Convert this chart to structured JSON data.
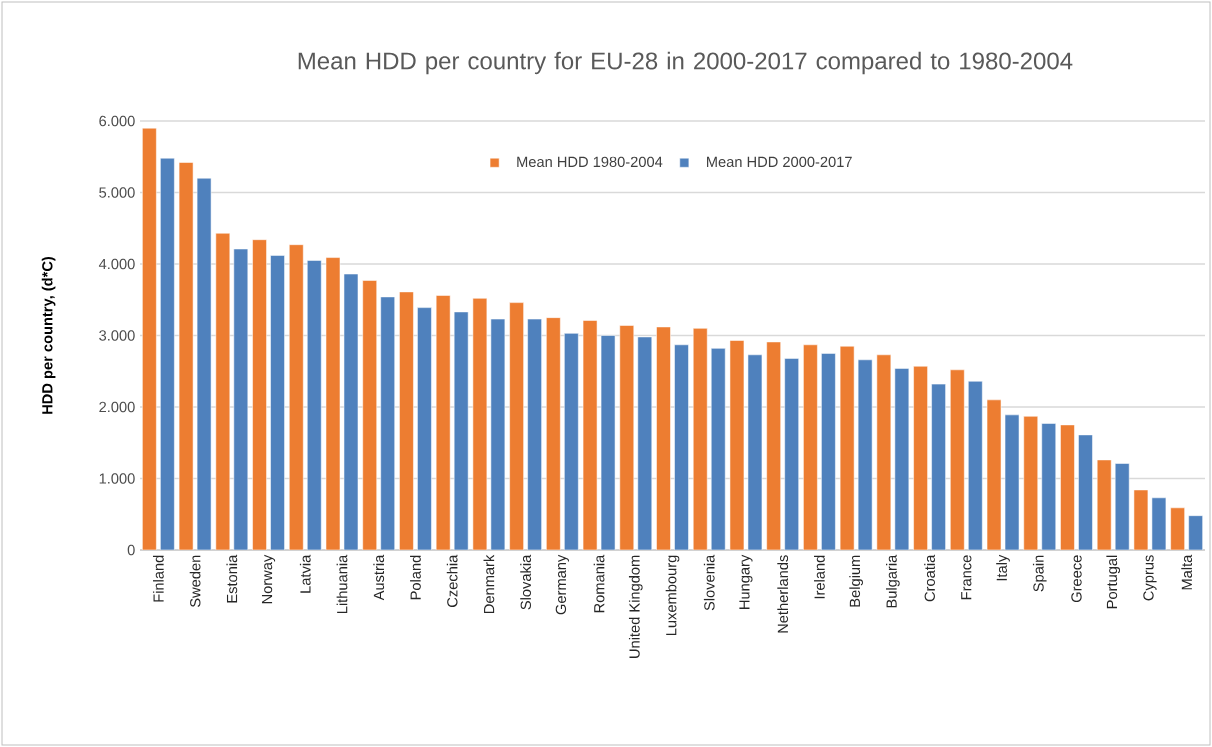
{
  "chart_data": {
    "type": "bar",
    "title": "Mean HDD per country for EU-28 in 2000-2017 compared to 1980-2004",
    "ylabel": "HDD per country, (d*C)",
    "categories": [
      "Finland",
      "Sweden",
      "Estonia",
      "Norway",
      "Latvia",
      "Lithuania",
      "Austria",
      "Poland",
      "Czechia",
      "Denmark",
      "Slovakia",
      "Germany",
      "Romania",
      "United Kingdom",
      "Luxembourg",
      "Slovenia",
      "Hungary",
      "Netherlands",
      "Ireland",
      "Belgium",
      "Bulgaria",
      "Croatia",
      "France",
      "Italy",
      "Spain",
      "Greece",
      "Portugal",
      "Cyprus",
      "Malta"
    ],
    "series": [
      {
        "name": "Mean HDD 1980-2004",
        "color": "#ed7d31",
        "values": [
          5900,
          5420,
          4430,
          4340,
          4270,
          4090,
          3770,
          3610,
          3560,
          3520,
          3460,
          3250,
          3210,
          3140,
          3120,
          3100,
          2930,
          2910,
          2870,
          2850,
          2730,
          2570,
          2520,
          2100,
          1870,
          1750,
          1260,
          840,
          590
        ]
      },
      {
        "name": "Mean HDD 2000-2017",
        "color": "#4f81bd",
        "values": [
          5480,
          5200,
          4210,
          4120,
          4050,
          3860,
          3540,
          3390,
          3330,
          3230,
          3230,
          3030,
          3000,
          2980,
          2870,
          2820,
          2730,
          2680,
          2750,
          2660,
          2540,
          2320,
          2360,
          1890,
          1770,
          1610,
          1210,
          730,
          480
        ]
      }
    ],
    "ylim": [
      0,
      6000
    ],
    "yticks": [
      {
        "value": 0,
        "label": "0"
      },
      {
        "value": 1000,
        "label": "1.000"
      },
      {
        "value": 2000,
        "label": "2.000"
      },
      {
        "value": 3000,
        "label": "3.000"
      },
      {
        "value": 4000,
        "label": "4.000"
      },
      {
        "value": 5000,
        "label": "5.000"
      },
      {
        "value": 6000,
        "label": "6.000"
      }
    ],
    "grid": "y",
    "legend": "top"
  }
}
